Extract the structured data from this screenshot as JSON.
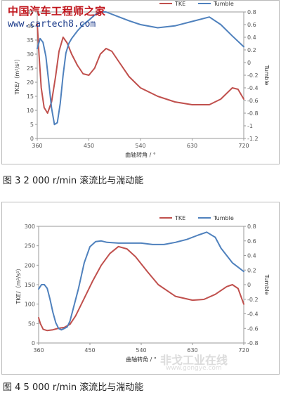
{
  "watermark_top": {
    "line1": "中国汽车工程师之家",
    "line2": "www.cartech8.com"
  },
  "watermark_bottom": {
    "line1": "非戈工业在线",
    "line2": "www.gongye.com"
  },
  "figures": [
    {
      "caption": "图 3   2 000 r/min 滚流比与湍动能"
    },
    {
      "caption": "图 4   5 000 r/min 滚流比与湍动能"
    }
  ],
  "colors": {
    "tke": "#c0504d",
    "tumble": "#4f81bd",
    "axis": "#555555"
  },
  "chart_data": [
    {
      "type": "line",
      "xlabel": "曲轴转角 / °",
      "ylabel_left": "TKE/（m²/s²）",
      "ylabel_right": "Tumble",
      "xticks": [
        360,
        450,
        540,
        630,
        720
      ],
      "xlim": [
        360,
        720
      ],
      "y_left": {
        "lim": [
          0,
          45
        ],
        "ticks": [
          0,
          5,
          10,
          15,
          20,
          25,
          30,
          35,
          40,
          45
        ]
      },
      "y_right": {
        "lim": [
          -1.2,
          0.8
        ],
        "ticks": [
          "-1.2",
          "-1",
          "-0.8",
          "-0.6",
          "-0.4",
          "-0.2",
          "0",
          "0.2",
          "0.4",
          "0.6",
          "0.8"
        ]
      },
      "legend": [
        "TKE",
        "Tumble"
      ],
      "legend_position": "top-right",
      "series": [
        {
          "name": "TKE",
          "axis": "left",
          "x": [
            360,
            363,
            367,
            372,
            378,
            385,
            392,
            398,
            405,
            412,
            420,
            430,
            440,
            450,
            460,
            470,
            480,
            490,
            500,
            520,
            540,
            570,
            600,
            630,
            660,
            680,
            700,
            710,
            720
          ],
          "y": [
            41,
            30,
            18,
            11,
            9,
            13,
            22,
            31,
            36,
            34,
            30,
            26,
            23,
            22.5,
            25,
            30,
            32,
            31,
            28,
            22,
            18,
            15,
            13,
            12,
            12,
            14,
            18,
            17.5,
            14
          ]
        },
        {
          "name": "Tumble",
          "axis": "right",
          "x": [
            360,
            365,
            370,
            375,
            380,
            385,
            390,
            395,
            400,
            405,
            410,
            415,
            420,
            430,
            440,
            450,
            460,
            470,
            480,
            500,
            520,
            540,
            570,
            600,
            630,
            660,
            680,
            700,
            720
          ],
          "y": [
            0.22,
            0.38,
            0.32,
            0.1,
            -0.3,
            -0.72,
            -0.98,
            -0.95,
            -0.65,
            -0.2,
            0.15,
            0.3,
            0.38,
            0.5,
            0.6,
            0.67,
            0.75,
            0.8,
            0.8,
            0.73,
            0.66,
            0.6,
            0.55,
            0.58,
            0.65,
            0.72,
            0.6,
            0.42,
            0.25
          ]
        }
      ]
    },
    {
      "type": "line",
      "xlabel": "曲轴转角 / °",
      "ylabel_left": "TKE/（m²/s²）",
      "ylabel_right": "Tumble",
      "xticks": [
        360,
        450,
        540,
        630,
        720
      ],
      "xlim": [
        360,
        720
      ],
      "y_left": {
        "lim": [
          0,
          300
        ],
        "ticks": [
          0,
          50,
          100,
          150,
          200,
          250,
          300
        ]
      },
      "y_right": {
        "lim": [
          -0.8,
          0.8
        ],
        "ticks": [
          "-0.8",
          "-0.6",
          "-0.4",
          "-0.2",
          "0",
          "0.2",
          "0.4",
          "0.6",
          "0.8"
        ]
      },
      "legend": [
        "TKE",
        "Tumble"
      ],
      "legend_position": "top-right",
      "series": [
        {
          "name": "TKE",
          "axis": "left",
          "x": [
            360,
            363,
            368,
            375,
            385,
            395,
            405,
            415,
            425,
            440,
            455,
            470,
            485,
            500,
            515,
            530,
            550,
            570,
            600,
            630,
            650,
            670,
            690,
            700,
            710,
            720
          ],
          "y": [
            65,
            50,
            35,
            32,
            34,
            38,
            40,
            48,
            70,
            115,
            160,
            200,
            230,
            248,
            242,
            222,
            185,
            150,
            120,
            110,
            112,
            125,
            145,
            150,
            140,
            100
          ]
        },
        {
          "name": "Tumble",
          "axis": "right",
          "x": [
            360,
            365,
            370,
            375,
            380,
            385,
            390,
            395,
            400,
            405,
            410,
            415,
            420,
            430,
            440,
            450,
            460,
            470,
            480,
            500,
            520,
            540,
            560,
            580,
            600,
            620,
            640,
            655,
            670,
            680,
            700,
            720
          ],
          "y": [
            -0.06,
            0.0,
            0.0,
            -0.05,
            -0.2,
            -0.38,
            -0.52,
            -0.6,
            -0.62,
            -0.6,
            -0.58,
            -0.5,
            -0.35,
            -0.05,
            0.3,
            0.52,
            0.59,
            0.6,
            0.58,
            0.57,
            0.57,
            0.57,
            0.55,
            0.55,
            0.58,
            0.62,
            0.68,
            0.72,
            0.65,
            0.5,
            0.3,
            0.18
          ]
        }
      ]
    }
  ]
}
